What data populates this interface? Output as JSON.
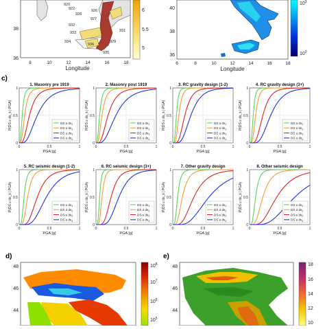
{
  "top_left_map": {
    "xlabel": "Longitude",
    "yticks": [
      "38",
      "36"
    ],
    "xticks": [
      "8",
      "10",
      "12",
      "14",
      "16",
      "18"
    ],
    "cbar_ticks": [
      "6",
      "5.5",
      "5"
    ],
    "zone_labels": [
      "920",
      "922",
      "928",
      "926",
      "927",
      "932",
      "933",
      "934",
      "936",
      "935",
      "929",
      "931"
    ],
    "colors": {
      "zone_dark": "#a83a2f",
      "zone_light": "#f2dc7a",
      "land": "#e3e3e3",
      "cbar_top": "#f0a500",
      "cbar_bottom": "#ffffcc"
    }
  },
  "top_right_map": {
    "xlabel": "Longitude",
    "yticks": [
      "40",
      "38",
      "36"
    ],
    "xticks": [
      "6",
      "8",
      "10",
      "12",
      "14",
      "16",
      "18"
    ],
    "cbar_labels": [
      "10",
      "10"
    ],
    "cbar_exp": [
      "3",
      "0"
    ],
    "colors": {
      "cbar_top": "#00ffff",
      "cbar_bottom": "#00008b"
    }
  },
  "panel_c_label": "c)",
  "chart_data": {
    "type": "line",
    "xlabel": "PGA [g]",
    "ylabel": "P(DS ≥ ds_k | PGA)",
    "xlim": [
      0,
      1
    ],
    "ylim": [
      0,
      1
    ],
    "xticks": [
      "0",
      "0.5",
      "1"
    ],
    "yticks": [
      "1",
      "0.5",
      "0"
    ],
    "legend_prefix": "DS ≥ ds",
    "legend_subscripts": [
      "1",
      "2",
      "3",
      "4"
    ],
    "series_colors": [
      "#5bd35b",
      "#f0a030",
      "#e02020",
      "#2030e0"
    ],
    "panels": [
      {
        "title": "1. Masonry pre 1919",
        "medians": [
          0.05,
          0.09,
          0.17,
          0.3
        ],
        "beta": 0.55
      },
      {
        "title": "2. Masonry post 1919",
        "medians": [
          0.06,
          0.1,
          0.2,
          0.33
        ],
        "beta": 0.55
      },
      {
        "title": "3. RC gravity design (1-2)",
        "medians": [
          0.06,
          0.1,
          0.2,
          0.3
        ],
        "beta": 0.45
      },
      {
        "title": "4. RC gravity design (3+)",
        "medians": [
          0.06,
          0.1,
          0.22,
          0.35
        ],
        "beta": 0.45
      },
      {
        "title": "5. RC seismic design (1-2)",
        "medians": [
          0.08,
          0.14,
          0.3,
          0.45
        ],
        "beta": 0.45
      },
      {
        "title": "6. RC seismic design (3+)",
        "medians": [
          0.06,
          0.1,
          0.25,
          0.38
        ],
        "beta": 0.4
      },
      {
        "title": "7. Other gravity design",
        "medians": [
          0.08,
          0.16,
          0.35,
          0.6
        ],
        "beta": 0.5
      },
      {
        "title": "8. Other seismic design",
        "medians": [
          0.1,
          0.22,
          0.45,
          0.75
        ],
        "beta": 0.5
      }
    ]
  },
  "panel_d": {
    "label": "d)",
    "yticks": [
      "48",
      "46",
      "44"
    ],
    "cbar_labels": [
      "10",
      "10",
      "10",
      "10"
    ],
    "cbar_exp": [
      "8",
      "7",
      "6",
      "5"
    ]
  },
  "panel_e": {
    "label": "e)",
    "yticks": [
      "48",
      "46",
      "44"
    ],
    "cbar_ticks": [
      "18",
      "16",
      "14",
      "12",
      "10"
    ]
  }
}
